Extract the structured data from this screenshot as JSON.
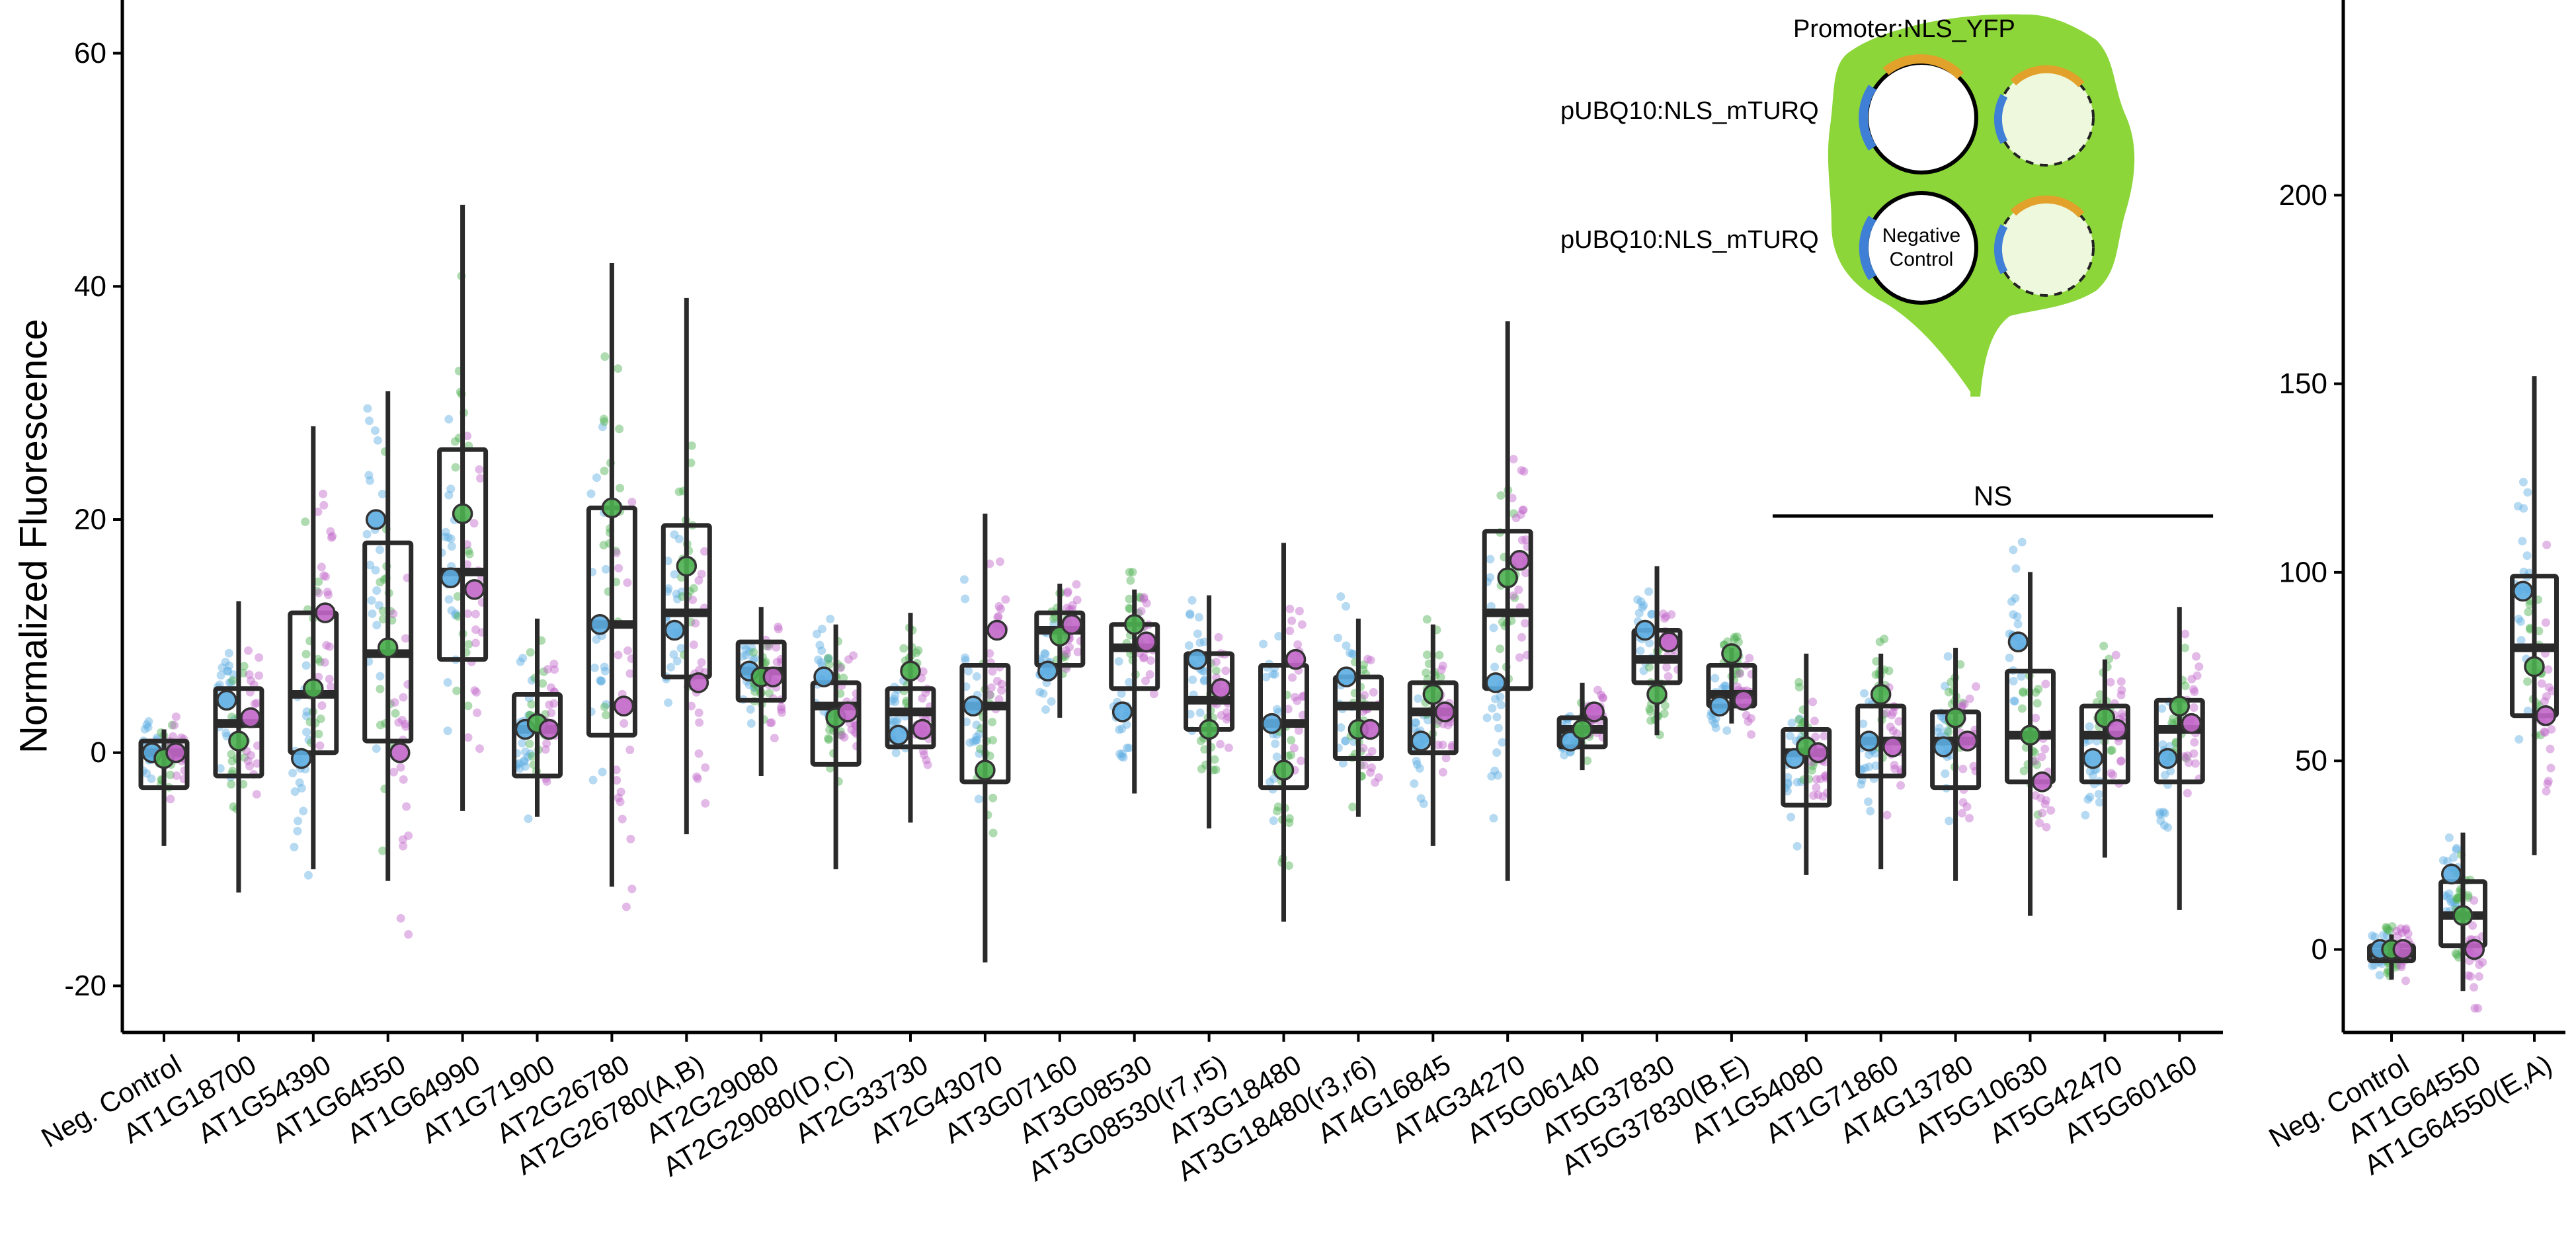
{
  "chart_data": [
    {
      "type": "box",
      "ylabel": "Normalized Fluorescence",
      "ylim": [
        -24,
        64
      ],
      "yticks": [
        -20,
        0,
        20,
        40,
        60
      ],
      "ytick_labels": [
        "-20",
        "0",
        "20",
        "40",
        "60"
      ],
      "categories": [
        "Neg. Control",
        "AT1G18700",
        "AT1G54390",
        "AT1G64550",
        "AT1G64990",
        "AT1G71900",
        "AT2G26780",
        "AT2G26780(A,B)",
        "AT2G29080",
        "AT2G29080(D,C)",
        "AT2G33730",
        "AT2G43070",
        "AT3G07160",
        "AT3G08530",
        "AT3G08530(r7,r5)",
        "AT3G18480",
        "AT3G18480(r3,r6)",
        "AT4G16845",
        "AT4G34270",
        "AT5G06140",
        "AT5G37830",
        "AT5G37830(B,E)",
        "AT1G54080",
        "AT1G71860",
        "AT4G13780",
        "AT5G10630",
        "AT5G42470",
        "AT5G60160"
      ],
      "boxes": [
        {
          "q1": -3,
          "median": 0,
          "q3": 1,
          "whisker_low": -8,
          "whisker_high": 2
        },
        {
          "q1": -2,
          "median": 2.5,
          "q3": 5.5,
          "whisker_low": -12,
          "whisker_high": 13
        },
        {
          "q1": 0,
          "median": 5,
          "q3": 12,
          "whisker_low": -10,
          "whisker_high": 28
        },
        {
          "q1": 1,
          "median": 8.5,
          "q3": 18,
          "whisker_low": -11,
          "whisker_high": 31
        },
        {
          "q1": 8,
          "median": 15.5,
          "q3": 26,
          "whisker_low": -5,
          "whisker_high": 47
        },
        {
          "q1": -2,
          "median": 2,
          "q3": 5,
          "whisker_low": -5.5,
          "whisker_high": 11.5
        },
        {
          "q1": 1.5,
          "median": 11,
          "q3": 21,
          "whisker_low": -11.5,
          "whisker_high": 42
        },
        {
          "q1": 6.5,
          "median": 12,
          "q3": 19.5,
          "whisker_low": -7,
          "whisker_high": 39
        },
        {
          "q1": 4.5,
          "median": 7,
          "q3": 9.5,
          "whisker_low": -2,
          "whisker_high": 12.5
        },
        {
          "q1": -1,
          "median": 4,
          "q3": 6,
          "whisker_low": -10,
          "whisker_high": 11
        },
        {
          "q1": 0.5,
          "median": 3.5,
          "q3": 5.5,
          "whisker_low": -6,
          "whisker_high": 12
        },
        {
          "q1": -2.5,
          "median": 4,
          "q3": 7.5,
          "whisker_low": -18,
          "whisker_high": 20.5
        },
        {
          "q1": 7.5,
          "median": 10.5,
          "q3": 12,
          "whisker_low": 3,
          "whisker_high": 14.5
        },
        {
          "q1": 5.5,
          "median": 9,
          "q3": 11,
          "whisker_low": -3.5,
          "whisker_high": 14
        },
        {
          "q1": 2,
          "median": 4.5,
          "q3": 8.5,
          "whisker_low": -6.5,
          "whisker_high": 13.5
        },
        {
          "q1": -3,
          "median": 2.5,
          "q3": 7.5,
          "whisker_low": -14.5,
          "whisker_high": 18
        },
        {
          "q1": -0.5,
          "median": 4,
          "q3": 6.5,
          "whisker_low": -5.5,
          "whisker_high": 11.5
        },
        {
          "q1": 0,
          "median": 3.5,
          "q3": 6,
          "whisker_low": -8,
          "whisker_high": 11
        },
        {
          "q1": 5.5,
          "median": 12,
          "q3": 19,
          "whisker_low": -11,
          "whisker_high": 37
        },
        {
          "q1": 0.5,
          "median": 2,
          "q3": 3,
          "whisker_low": -1.5,
          "whisker_high": 6
        },
        {
          "q1": 6,
          "median": 8,
          "q3": 10.5,
          "whisker_low": 1.5,
          "whisker_high": 16
        },
        {
          "q1": 4,
          "median": 5,
          "q3": 7.5,
          "whisker_low": 2.5,
          "whisker_high": 9
        },
        {
          "q1": -4.5,
          "median": 0,
          "q3": 2,
          "whisker_low": -10.5,
          "whisker_high": 8.5
        },
        {
          "q1": -2,
          "median": 1,
          "q3": 4,
          "whisker_low": -10,
          "whisker_high": 8.5
        },
        {
          "q1": -3,
          "median": 1,
          "q3": 3.5,
          "whisker_low": -11,
          "whisker_high": 9
        },
        {
          "q1": -2.5,
          "median": 1.5,
          "q3": 7,
          "whisker_low": -14,
          "whisker_high": 15.5
        },
        {
          "q1": -2.5,
          "median": 1.5,
          "q3": 4,
          "whisker_low": -9,
          "whisker_high": 8
        },
        {
          "q1": -2.5,
          "median": 2,
          "q3": 4.5,
          "whisker_low": -13.5,
          "whisker_high": 12.5
        }
      ],
      "replicate_means": [
        [
          0,
          -0.5,
          0
        ],
        [
          4.5,
          1,
          3
        ],
        [
          -0.5,
          5.5,
          12
        ],
        [
          20,
          9,
          0
        ],
        [
          15,
          20.5,
          14
        ],
        [
          2,
          2.5,
          2
        ],
        [
          11,
          21,
          4
        ],
        [
          10.5,
          16,
          6
        ],
        [
          7,
          6.5,
          6.5
        ],
        [
          6.5,
          3,
          3.5
        ],
        [
          1.5,
          7,
          2
        ],
        [
          4,
          -1.5,
          10.5
        ],
        [
          7,
          10,
          11
        ],
        [
          3.5,
          11,
          9.5
        ],
        [
          8,
          2,
          5.5
        ],
        [
          2.5,
          -1.5,
          8
        ],
        [
          6.5,
          2,
          2
        ],
        [
          1,
          5,
          3.5
        ],
        [
          6,
          15,
          16.5
        ],
        [
          1,
          2,
          3.5
        ],
        [
          10.5,
          5,
          9.5
        ],
        [
          4,
          8.5,
          4.5
        ],
        [
          -0.5,
          0.5,
          0
        ],
        [
          1,
          5,
          0.5
        ],
        [
          0.5,
          3,
          1
        ],
        [
          9.5,
          1.5,
          -2.5
        ],
        [
          -0.5,
          3,
          2
        ],
        [
          -0.5,
          4,
          2.5
        ]
      ],
      "replicate_colors": [
        "#5DADE2",
        "#4CAF50",
        "#C266C9"
      ],
      "significance": {
        "label": "NS",
        "from": "AT1G54080",
        "to": "AT5G60160"
      },
      "inset": {
        "title": "Promoter:NLS_YFP",
        "row1_label": "pUBQ10:NLS_mTURQ",
        "row2_label": "pUBQ10:NLS_mTURQ",
        "negative_control_line1": "Negative",
        "negative_control_line2": "Control",
        "leaf_color": "#8CD63A"
      }
    },
    {
      "type": "box",
      "ylabel": "",
      "ylim": [
        -22,
        250
      ],
      "yticks": [
        0,
        50,
        100,
        150,
        200
      ],
      "ytick_labels": [
        "0",
        "50",
        "100",
        "150",
        "200"
      ],
      "categories": [
        "Neg. Control",
        "AT1G64550",
        "AT1G64550(E,A)"
      ],
      "boxes": [
        {
          "q1": -3,
          "median": -1,
          "q3": 1,
          "whisker_low": -8,
          "whisker_high": 4
        },
        {
          "q1": 1,
          "median": 9,
          "q3": 18,
          "whisker_low": -11,
          "whisker_high": 31
        },
        {
          "q1": 62,
          "median": 80,
          "q3": 99,
          "whisker_low": 25,
          "whisker_high": 152
        }
      ],
      "replicate_means": [
        [
          0,
          0,
          0
        ],
        [
          20,
          9,
          0
        ],
        [
          95,
          75,
          62
        ]
      ],
      "replicate_colors": [
        "#5DADE2",
        "#4CAF50",
        "#C266C9"
      ]
    }
  ]
}
